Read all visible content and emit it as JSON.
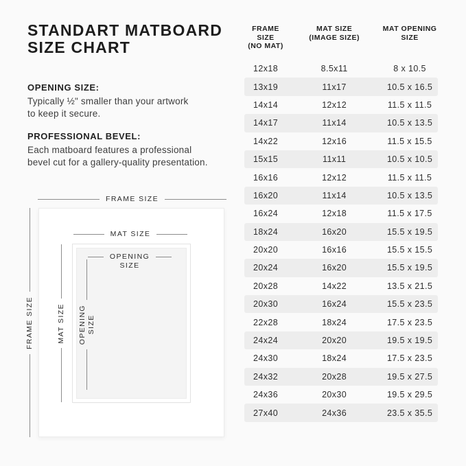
{
  "page": {
    "background_color": "#fafafa",
    "shaded_row_color": "#ededed",
    "text_color": "#1e1e1e"
  },
  "left": {
    "title": "STANDART MATBOARD\nSIZE CHART",
    "sections": [
      {
        "label": "OPENING SIZE:",
        "body": "Typically ½\" smaller than your artwork\nto keep it secure."
      },
      {
        "label": "PROFESSIONAL BEVEL:",
        "body": "Each matboard features a professional\nbevel cut for a gallery-quality presentation."
      }
    ]
  },
  "diagram": {
    "frame_label_top": "FRAME SIZE",
    "frame_label_left": "FRAME SIZE",
    "mat_label_top": "MAT SIZE",
    "mat_label_left": "MAT SIZE",
    "opening_label_top": "OPENING\nSIZE",
    "opening_label_left": "OPENING\nSIZE"
  },
  "table": {
    "headers": [
      "FRAME SIZE\n(NO MAT)",
      "MAT SIZE\n(IMAGE SIZE)",
      "MAT OPENING\nSIZE"
    ],
    "rows": [
      [
        "12x18",
        "8.5x11",
        "8 x 10.5"
      ],
      [
        "13x19",
        "11x17",
        "10.5 x 16.5"
      ],
      [
        "14x14",
        "12x12",
        "11.5 x 11.5"
      ],
      [
        "14x17",
        "11x14",
        "10.5 x 13.5"
      ],
      [
        "14x22",
        "12x16",
        "11.5 x 15.5"
      ],
      [
        "15x15",
        "11x11",
        "10.5 x 10.5"
      ],
      [
        "16x16",
        "12x12",
        "11.5 x 11.5"
      ],
      [
        "16x20",
        "11x14",
        "10.5 x 13.5"
      ],
      [
        "16x24",
        "12x18",
        "11.5 x 17.5"
      ],
      [
        "18x24",
        "16x20",
        "15.5 x 19.5"
      ],
      [
        "20x20",
        "16x16",
        "15.5 x 15.5"
      ],
      [
        "20x24",
        "16x20",
        "15.5 x 19.5"
      ],
      [
        "20x28",
        "14x22",
        "13.5 x 21.5"
      ],
      [
        "20x30",
        "16x24",
        "15.5 x 23.5"
      ],
      [
        "22x28",
        "18x24",
        "17.5 x 23.5"
      ],
      [
        "24x24",
        "20x20",
        "19.5 x 19.5"
      ],
      [
        "24x30",
        "18x24",
        "17.5 x 23.5"
      ],
      [
        "24x32",
        "20x28",
        "19.5 x 27.5"
      ],
      [
        "24x36",
        "20x30",
        "19.5 x 29.5"
      ],
      [
        "27x40",
        "24x36",
        "23.5 x 35.5"
      ]
    ]
  }
}
